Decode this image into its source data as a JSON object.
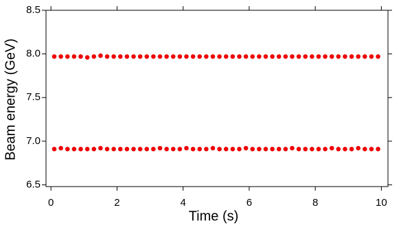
{
  "chart_data": {
    "type": "scatter",
    "xlabel": "Time (s)",
    "ylabel": "Beam energy (GeV)",
    "xlim": [
      -0.15,
      10.2
    ],
    "ylim": [
      6.48,
      8.5
    ],
    "xticks": [
      0,
      2,
      4,
      6,
      8,
      10
    ],
    "yticks": [
      6.5,
      {
        "value": 7,
        "label": "7.0"
      },
      7.5,
      {
        "value": 8,
        "label": "8.0"
      },
      8.5
    ],
    "x": [
      0.1,
      0.3,
      0.5,
      0.7,
      0.9,
      1.1,
      1.3,
      1.5,
      1.7,
      1.9,
      2.1,
      2.3,
      2.5,
      2.7,
      2.9,
      3.1,
      3.3,
      3.5,
      3.7,
      3.9,
      4.1,
      4.3,
      4.5,
      4.7,
      4.9,
      5.1,
      5.3,
      5.5,
      5.7,
      5.9,
      6.1,
      6.3,
      6.5,
      6.7,
      6.9,
      7.1,
      7.3,
      7.5,
      7.7,
      7.9,
      8.1,
      8.3,
      8.5,
      8.7,
      8.9,
      9.1,
      9.3,
      9.5,
      9.7,
      9.9
    ],
    "series": [
      {
        "color": "#ee0000",
        "values": [
          7.97,
          7.97,
          7.97,
          7.97,
          7.97,
          7.96,
          7.97,
          7.98,
          7.97,
          7.97,
          7.97,
          7.97,
          7.97,
          7.97,
          7.97,
          7.97,
          7.97,
          7.97,
          7.97,
          7.97,
          7.97,
          7.97,
          7.97,
          7.97,
          7.97,
          7.97,
          7.97,
          7.97,
          7.97,
          7.97,
          7.97,
          7.97,
          7.97,
          7.97,
          7.97,
          7.97,
          7.97,
          7.97,
          7.97,
          7.97,
          7.97,
          7.97,
          7.97,
          7.97,
          7.97,
          7.97,
          7.97,
          7.97,
          7.97,
          7.97
        ]
      },
      {
        "color": "#ee0000",
        "values": [
          6.91,
          6.92,
          6.91,
          6.91,
          6.91,
          6.91,
          6.91,
          6.92,
          6.91,
          6.91,
          6.91,
          6.91,
          6.91,
          6.91,
          6.91,
          6.91,
          6.92,
          6.91,
          6.91,
          6.91,
          6.92,
          6.91,
          6.91,
          6.91,
          6.92,
          6.91,
          6.91,
          6.91,
          6.91,
          6.92,
          6.91,
          6.91,
          6.91,
          6.91,
          6.91,
          6.91,
          6.92,
          6.91,
          6.91,
          6.91,
          6.91,
          6.91,
          6.92,
          6.91,
          6.91,
          6.91,
          6.92,
          6.91,
          6.91,
          6.91
        ]
      }
    ]
  }
}
